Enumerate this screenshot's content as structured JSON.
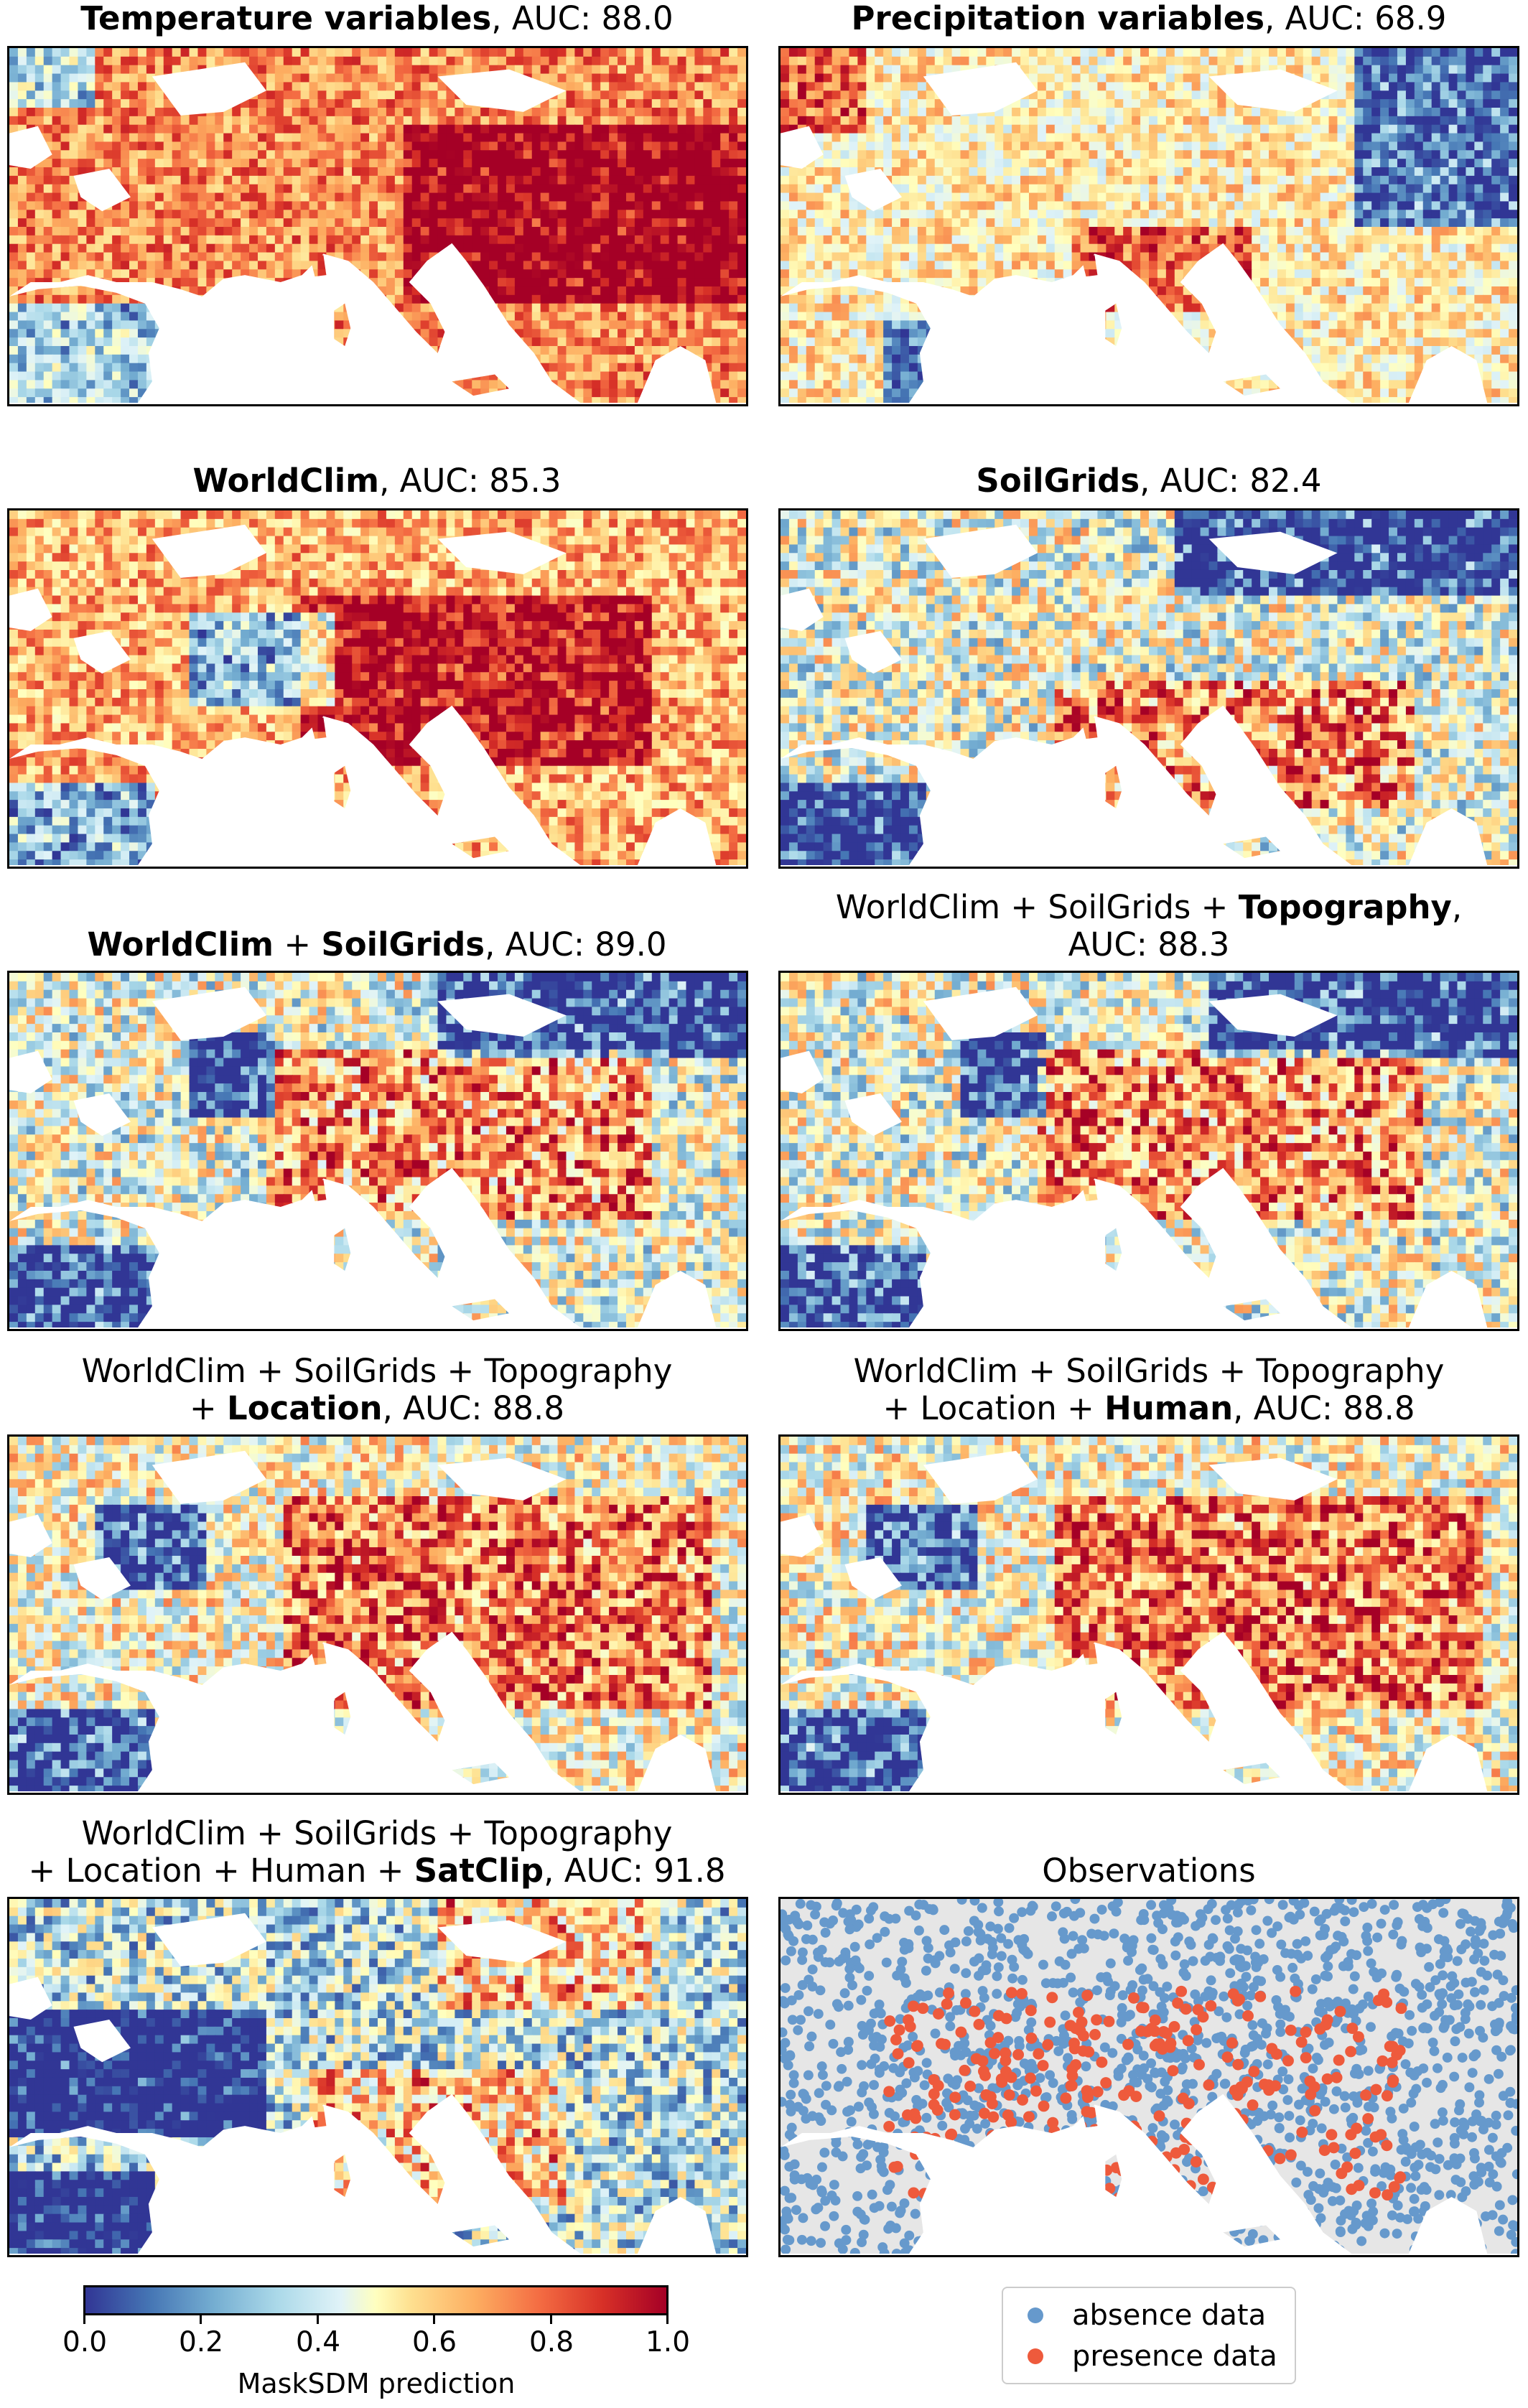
{
  "panels": [
    {
      "title_bold": "Temperature variables",
      "title_rest": ", AUC: 88.0",
      "layout": "single",
      "palette_key": "temp"
    },
    {
      "title_bold": "Precipitation variables",
      "title_rest": ", AUC: 68.9",
      "layout": "single",
      "palette_key": "precip"
    },
    {
      "title_bold": "WorldClim",
      "title_rest": ", AUC: 85.3",
      "layout": "single",
      "palette_key": "worldclim"
    },
    {
      "title_bold": "SoilGrids",
      "title_rest": ", AUC: 82.4",
      "layout": "single",
      "palette_key": "soil"
    },
    {
      "title_bold1": "WorldClim",
      "title_mid": " + ",
      "title_bold2": "SoilGrids",
      "title_rest": ", AUC: 89.0",
      "layout": "double_bold",
      "palette_key": "wcsg"
    },
    {
      "title_line1_pre": "WorldClim + SoilGrids + ",
      "title_line1_bold": "Topography",
      "title_line1_post": ",",
      "title_line2": "AUC: 88.3",
      "layout": "two_line_a",
      "palette_key": "wcsg"
    },
    {
      "title_line1": "WorldClim + SoilGrids + Topography",
      "title_line2_pre": "+ ",
      "title_line2_bold": "Location",
      "title_line2_post": ", AUC: 88.8",
      "layout": "two_line_b",
      "palette_key": "loc"
    },
    {
      "title_line1": "WorldClim + SoilGrids + Topography",
      "title_line2_pre": "+ Location + ",
      "title_line2_bold": "Human",
      "title_line2_post": ", AUC: 88.8",
      "layout": "two_line_b",
      "palette_key": "loc"
    },
    {
      "title_line1": "WorldClim + SoilGrids + Topography",
      "title_line2_pre": "+ Location + Human + ",
      "title_line2_bold": "SatClip",
      "title_line2_post": ", AUC: 91.8",
      "layout": "two_line_b",
      "palette_key": "satclip"
    },
    {
      "title_plain": "Observations",
      "layout": "plain",
      "palette_key": "obs"
    }
  ],
  "colorbar": {
    "label": "MaskSDM prediction",
    "ticks": [
      "0.0",
      "0.2",
      "0.4",
      "0.6",
      "0.8",
      "1.0"
    ],
    "range": [
      0,
      1
    ],
    "colormap": [
      "#313695",
      "#4575b4",
      "#74add1",
      "#abd9e9",
      "#e0f3f8",
      "#ffffbf",
      "#fee090",
      "#fdae61",
      "#f46d43",
      "#d73027",
      "#a50026"
    ]
  },
  "legend": {
    "items": [
      {
        "label": "absence data",
        "color": "#6699cc"
      },
      {
        "label": "presence data",
        "color": "#ee5a3c"
      }
    ]
  },
  "chart_data": {
    "type": "heatmap",
    "title": "",
    "description_values": [
      {
        "panel": "Temperature variables",
        "auc": 88.0
      },
      {
        "panel": "Precipitation variables",
        "auc": 68.9
      },
      {
        "panel": "WorldClim",
        "auc": 85.3
      },
      {
        "panel": "SoilGrids",
        "auc": 82.4
      },
      {
        "panel": "WorldClim + SoilGrids",
        "auc": 89.0
      },
      {
        "panel": "WorldClim + SoilGrids + Topography",
        "auc": 88.3
      },
      {
        "panel": "WorldClim + SoilGrids + Topography + Location",
        "auc": 88.8
      },
      {
        "panel": "WorldClim + SoilGrids + Topography + Location + Human",
        "auc": 88.8
      },
      {
        "panel": "WorldClim + SoilGrids + Topography + Location + Human + SatClip",
        "auc": 91.8
      }
    ],
    "colorbar_range": [
      0,
      1
    ],
    "colorbar_label": "MaskSDM prediction",
    "legend": [
      "absence data",
      "presence data"
    ]
  }
}
